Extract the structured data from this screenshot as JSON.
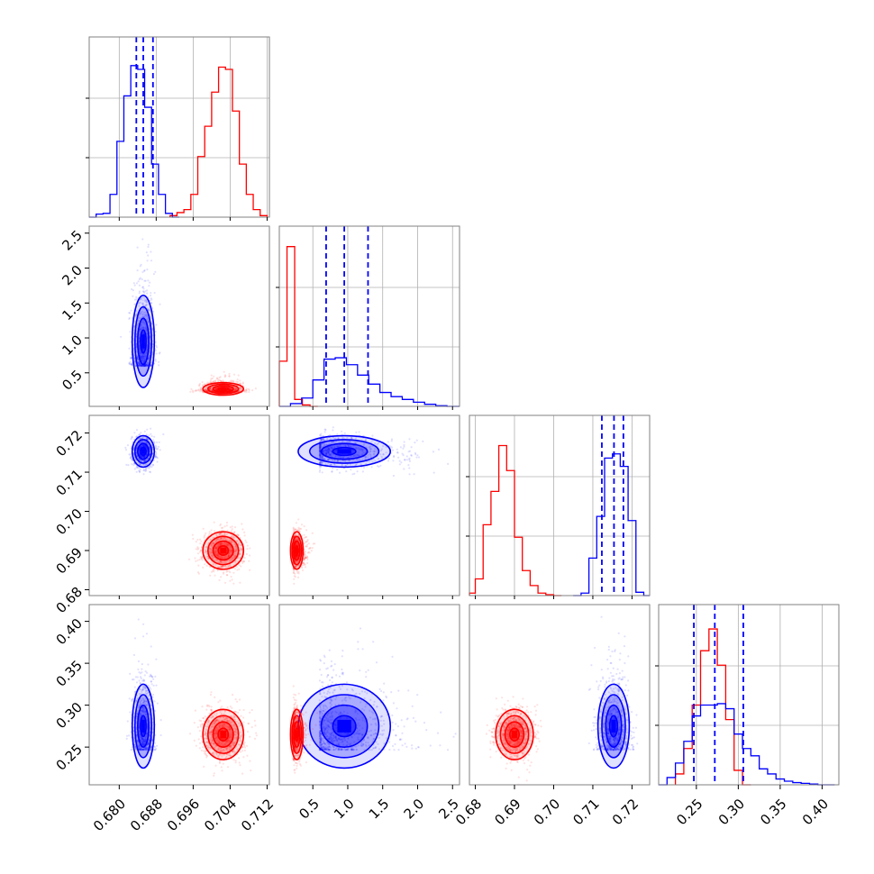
{
  "figure": {
    "type": "corner-plot",
    "n_params": 4
  },
  "colors": {
    "series_a": "#0000ff",
    "series_b": "#ff0000",
    "grid": "#b0b0b0",
    "frame": "#808080"
  },
  "chart_data": {
    "type": "corner",
    "grid": true,
    "series": [
      {
        "color": "#0000ff",
        "quantiles": [
          [
            0.6837,
            0.6852,
            0.6873
          ],
          [
            0.69,
            0.95,
            1.29
          ],
          [
            0.7123,
            0.7154,
            0.7178
          ],
          [
            0.247,
            0.272,
            0.306
          ]
        ],
        "means": [
          0.6852,
          0.95,
          0.7153,
          0.275
        ]
      },
      {
        "color": "#ff0000",
        "means": [
          0.7025,
          0.27,
          0.69,
          0.265
        ]
      }
    ],
    "params": [
      {
        "range": [
          0.6735,
          0.7125
        ],
        "ticks": [
          "0.680",
          "0.688",
          "0.696",
          "0.704",
          "0.712"
        ],
        "tickvals": [
          0.68,
          0.688,
          0.696,
          0.704,
          0.712
        ]
      },
      {
        "range": [
          0.02,
          2.6
        ],
        "ticks": [
          "0.5",
          "1.0",
          "1.5",
          "2.0",
          "2.5"
        ],
        "tickvals": [
          0.5,
          1.0,
          1.5,
          2.0,
          2.5
        ]
      },
      {
        "range": [
          0.6785,
          0.7245
        ],
        "ticks": [
          "0.68",
          "0.69",
          "0.70",
          "0.71",
          "0.72"
        ],
        "tickvals": [
          0.68,
          0.69,
          0.7,
          0.71,
          0.72
        ]
      },
      {
        "range": [
          0.205,
          0.42
        ],
        "ticks": [
          "0.25",
          "0.30",
          "0.35",
          "0.40"
        ],
        "tickvals": [
          0.25,
          0.3,
          0.35,
          0.4
        ]
      }
    ],
    "ylabel_rows": [
      {
        "row": 1,
        "ticks": [
          "0.5",
          "1.0",
          "1.5",
          "2.0",
          "2.5"
        ]
      },
      {
        "row": 2,
        "ticks": [
          "0.68",
          "0.69",
          "0.70",
          "0.71",
          "0.72"
        ]
      },
      {
        "row": 3,
        "ticks": [
          "0.25",
          "0.30",
          "0.35",
          "0.40"
        ]
      }
    ],
    "histograms": [
      {
        "param": 0,
        "blue": {
          "edges": [
            0.6735,
            0.675,
            0.6765,
            0.678,
            0.6795,
            0.681,
            0.6825,
            0.684,
            0.6855,
            0.687,
            0.6885,
            0.69,
            0.6915,
            0.693
          ],
          "counts": [
            0,
            4,
            5,
            30,
            100,
            160,
            200,
            195,
            145,
            70,
            30,
            5,
            0
          ]
        },
        "red": {
          "edges": [
            0.691,
            0.6925,
            0.694,
            0.6955,
            0.697,
            0.6985,
            0.7,
            0.7015,
            0.703,
            0.7045,
            0.706,
            0.7075,
            0.709,
            0.7105,
            0.712
          ],
          "counts": [
            2,
            6,
            10,
            30,
            80,
            120,
            165,
            198,
            195,
            140,
            70,
            30,
            10,
            2
          ]
        },
        "ymax": 220
      },
      {
        "param": 1,
        "blue": {
          "edges": [
            0.02,
            0.18,
            0.34,
            0.5,
            0.66,
            0.82,
            0.98,
            1.14,
            1.3,
            1.46,
            1.62,
            1.78,
            1.94,
            2.1,
            2.26,
            2.42,
            2.6
          ],
          "counts": [
            0,
            4,
            12,
            38,
            68,
            70,
            60,
            45,
            32,
            20,
            14,
            10,
            6,
            3,
            1,
            0
          ]
        },
        "red": {
          "edges": [
            0.02,
            0.13,
            0.24,
            0.35,
            0.46,
            0.57
          ],
          "counts": [
            65,
            230,
            10,
            2,
            0
          ]
        },
        "ymax": 240
      },
      {
        "param": 2,
        "blue": {
          "edges": [
            0.705,
            0.707,
            0.709,
            0.711,
            0.713,
            0.715,
            0.717,
            0.719,
            0.721,
            0.723,
            0.7245
          ],
          "counts": [
            0,
            3,
            45,
            95,
            165,
            170,
            155,
            90,
            4,
            0
          ]
        },
        "red": {
          "edges": [
            0.678,
            0.68,
            0.682,
            0.684,
            0.686,
            0.688,
            0.69,
            0.692,
            0.694,
            0.696,
            0.698,
            0.7,
            0.702
          ],
          "counts": [
            3,
            20,
            85,
            125,
            180,
            150,
            70,
            30,
            12,
            3,
            1,
            0
          ]
        },
        "ymax": 200
      },
      {
        "param": 3,
        "blue": {
          "edges": [
            0.205,
            0.215,
            0.225,
            0.235,
            0.245,
            0.255,
            0.265,
            0.275,
            0.285,
            0.295,
            0.305,
            0.315,
            0.325,
            0.335,
            0.345,
            0.355,
            0.365,
            0.375,
            0.385,
            0.395,
            0.405,
            0.415
          ],
          "counts": [
            0,
            10,
            30,
            60,
            95,
            110,
            110,
            112,
            105,
            70,
            50,
            40,
            22,
            15,
            8,
            5,
            3,
            2,
            1,
            0,
            0
          ]
        },
        "red": {
          "edges": [
            0.225,
            0.235,
            0.245,
            0.255,
            0.265,
            0.275,
            0.285,
            0.295,
            0.305,
            0.315
          ],
          "counts": [
            15,
            50,
            110,
            185,
            215,
            165,
            90,
            20,
            0
          ]
        },
        "ymax": 230
      }
    ],
    "scatter_panels": [
      {
        "row": 1,
        "col": 0
      },
      {
        "row": 2,
        "col": 0
      },
      {
        "row": 2,
        "col": 1
      },
      {
        "row": 3,
        "col": 0
      },
      {
        "row": 3,
        "col": 1
      },
      {
        "row": 3,
        "col": 2
      }
    ],
    "blobs": {
      "blue": [
        {
          "sx": 0.0012,
          "sy": 0.33,
          "rho": 0.0,
          "shape": [
            1.0,
            1.0
          ]
        },
        {
          "sx": 0.0012,
          "sy": 0.002,
          "rho": 0.0
        },
        {
          "sx": 0.33,
          "sy": 0.002,
          "rho": -0.1
        },
        {
          "sx": 0.0012,
          "sy": 0.025,
          "rho": 0.0
        },
        {
          "sx": 0.33,
          "sy": 0.025,
          "rho": 0.1
        },
        {
          "sx": 0.002,
          "sy": 0.025,
          "rho": 0.0
        }
      ],
      "red": [
        {
          "sx": 0.0022,
          "sy": 0.045,
          "rho": 0.0
        },
        {
          "sx": 0.0022,
          "sy": 0.0024,
          "rho": 0.0
        },
        {
          "sx": 0.045,
          "sy": 0.0024,
          "rho": 0.0
        },
        {
          "sx": 0.0022,
          "sy": 0.015,
          "rho": 0.0
        },
        {
          "sx": 0.045,
          "sy": 0.015,
          "rho": 0.0
        },
        {
          "sx": 0.0024,
          "sy": 0.015,
          "rho": 0.0
        }
      ]
    }
  }
}
